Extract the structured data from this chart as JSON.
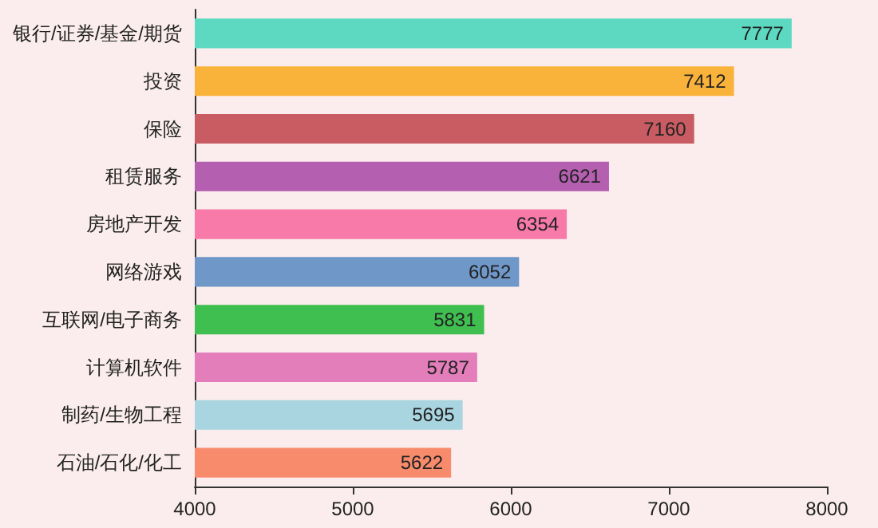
{
  "chart_data": {
    "type": "bar",
    "orientation": "horizontal",
    "categories": [
      "银行/证券/基金/期货",
      "投资",
      "保险",
      "租赁服务",
      "房地产开发",
      "网络游戏",
      "互联网/电子商务",
      "计算机软件",
      "制药/生物工程",
      "石油/石化/化工"
    ],
    "values": [
      7777,
      7412,
      7160,
      6621,
      6354,
      6052,
      5831,
      5787,
      5695,
      5622
    ],
    "colors": [
      "#5dd9c1",
      "#f9b23a",
      "#c95c63",
      "#b45fb0",
      "#f87aa8",
      "#6f97c8",
      "#3fbf4f",
      "#e37ebb",
      "#a8d5e0",
      "#f88b6c"
    ],
    "xlim": [
      4000,
      8000
    ],
    "xticks": [
      4000,
      5000,
      6000,
      7000,
      8000
    ],
    "data_labels": true,
    "grid": false
  }
}
